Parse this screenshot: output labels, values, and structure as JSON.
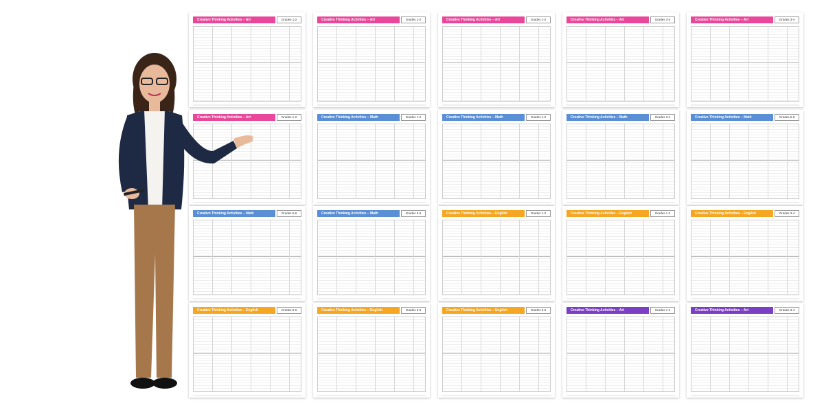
{
  "pages": [
    {
      "title": "Creative Thinking Activities – Art",
      "grade": "Grades 1-2",
      "color": "#e8479a"
    },
    {
      "title": "Creative Thinking Activities – Art",
      "grade": "Grades 1-2",
      "color": "#e8479a"
    },
    {
      "title": "Creative Thinking Activities – Art",
      "grade": "Grades 1-2",
      "color": "#e8479a"
    },
    {
      "title": "Creative Thinking Activities – Art",
      "grade": "Grades 3-4",
      "color": "#e8479a"
    },
    {
      "title": "Creative Thinking Activities – Art",
      "grade": "Grades 3-4",
      "color": "#e8479a"
    },
    {
      "title": "Creative Thinking Activities – Art",
      "grade": "Grades 1-2",
      "color": "#e8479a"
    },
    {
      "title": "Creative Thinking Activities – Math",
      "grade": "Grades 1-2",
      "color": "#5a8fd6"
    },
    {
      "title": "Creative Thinking Activities – Math",
      "grade": "Grades 1-2",
      "color": "#5a8fd6"
    },
    {
      "title": "Creative Thinking Activities – Math",
      "grade": "Grades 3-4",
      "color": "#5a8fd6"
    },
    {
      "title": "Creative Thinking Activities – Math",
      "grade": "Grades 5-6",
      "color": "#5a8fd6"
    },
    {
      "title": "Creative Thinking Activities – Math",
      "grade": "Grades 5-6",
      "color": "#5a8fd6"
    },
    {
      "title": "Creative Thinking Activities – Math",
      "grade": "Grades 5-6",
      "color": "#5a8fd6"
    },
    {
      "title": "Creative Thinking Activities – English",
      "grade": "Grades 1-2",
      "color": "#f5a623"
    },
    {
      "title": "Creative Thinking Activities – English",
      "grade": "Grades 1-2",
      "color": "#f5a623"
    },
    {
      "title": "Creative Thinking Activities – English",
      "grade": "Grades 3-4",
      "color": "#f5a623"
    },
    {
      "title": "Creative Thinking Activities – English",
      "grade": "Grades 5-6",
      "color": "#f5a623"
    },
    {
      "title": "Creative Thinking Activities – English",
      "grade": "Grades 5-6",
      "color": "#f5a623"
    },
    {
      "title": "Creative Thinking Activities – English",
      "grade": "Grades 5-6",
      "color": "#f5a623"
    },
    {
      "title": "Creative Thinking Activities – Art",
      "grade": "Grades 1-2",
      "color": "#7b3fc4"
    },
    {
      "title": "Creative Thinking Activities – Art",
      "grade": "Grades 3-4",
      "color": "#7b3fc4"
    }
  ]
}
